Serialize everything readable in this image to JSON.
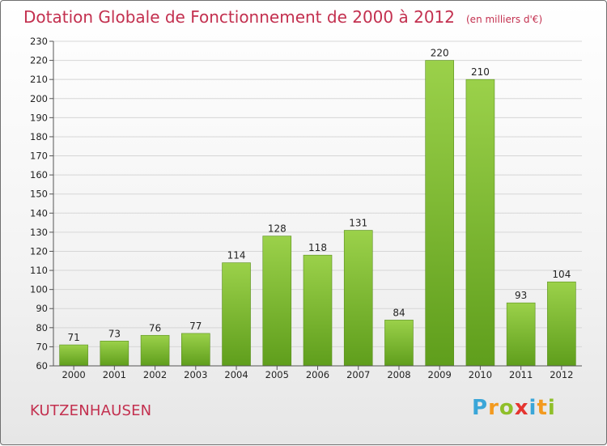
{
  "title": "Dotation Globale de Fonctionnement de 2000 à 2012",
  "title_unit": "(en milliers d'€)",
  "commune": "KUTZENHAUSEN",
  "logo": {
    "letters": [
      "P",
      "r",
      "o",
      "x",
      "i",
      "t",
      "i"
    ],
    "colors": [
      "#3aa6d8",
      "#f39a1f",
      "#8fbf2a",
      "#e5342f",
      "#3aa6d8",
      "#f39a1f",
      "#8fbf2a"
    ]
  },
  "chart_data": {
    "type": "bar",
    "title": "Dotation Globale de Fonctionnement de 2000 à 2012",
    "categories": [
      "2000",
      "2001",
      "2002",
      "2003",
      "2004",
      "2005",
      "2006",
      "2007",
      "2008",
      "2009",
      "2010",
      "2011",
      "2012"
    ],
    "values": [
      71,
      73,
      76,
      77,
      114,
      128,
      118,
      131,
      84,
      220,
      210,
      93,
      104
    ],
    "ylim": [
      60,
      230
    ],
    "yticks": [
      60,
      70,
      80,
      90,
      100,
      110,
      120,
      130,
      140,
      150,
      160,
      170,
      180,
      190,
      200,
      210,
      220,
      230
    ],
    "grid": true,
    "bar_color": "#7fbf2e"
  }
}
